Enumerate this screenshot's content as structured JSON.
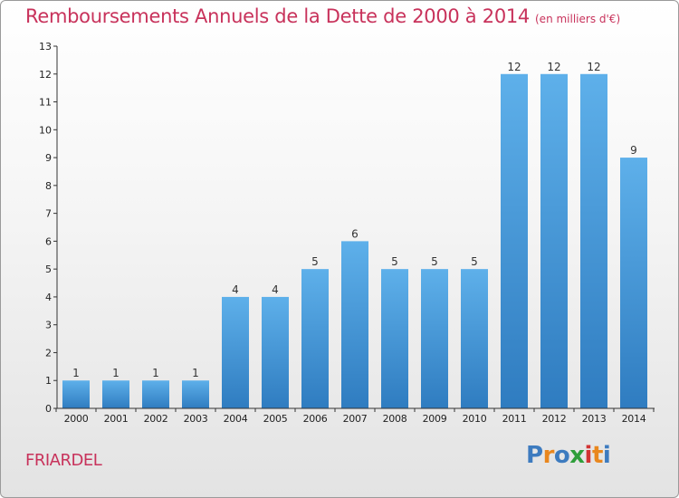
{
  "title": "Remboursements Annuels de la Dette de 2000 à 2014",
  "subtitle": "(en milliers d'€)",
  "commune": "FRIARDEL",
  "logo": {
    "letters": [
      "P",
      "r",
      "o",
      "x",
      "i",
      "t",
      "i"
    ],
    "colors": [
      "#3d7bbf",
      "#e9871e",
      "#3d7bbf",
      "#2f9e3a",
      "#d23333",
      "#e9871e",
      "#3d7bbf"
    ]
  },
  "colors": {
    "bar_top": "#5eb0ea",
    "bar_bottom": "#2f7cc0",
    "title": "#c8325b",
    "axis": "#333333"
  },
  "chart_data": {
    "type": "bar",
    "title": "Remboursements Annuels de la Dette de 2000 à 2014",
    "xlabel": "",
    "ylabel": "",
    "ylim": [
      0,
      13
    ],
    "yticks": [
      0,
      1,
      2,
      3,
      4,
      5,
      6,
      7,
      8,
      9,
      10,
      11,
      12,
      13
    ],
    "grid": false,
    "categories": [
      "2000",
      "2001",
      "2002",
      "2003",
      "2004",
      "2005",
      "2006",
      "2007",
      "2008",
      "2009",
      "2010",
      "2011",
      "2012",
      "2013",
      "2014"
    ],
    "values": [
      1,
      1,
      1,
      1,
      4,
      4,
      5,
      6,
      5,
      5,
      5,
      12,
      12,
      12,
      9
    ]
  }
}
